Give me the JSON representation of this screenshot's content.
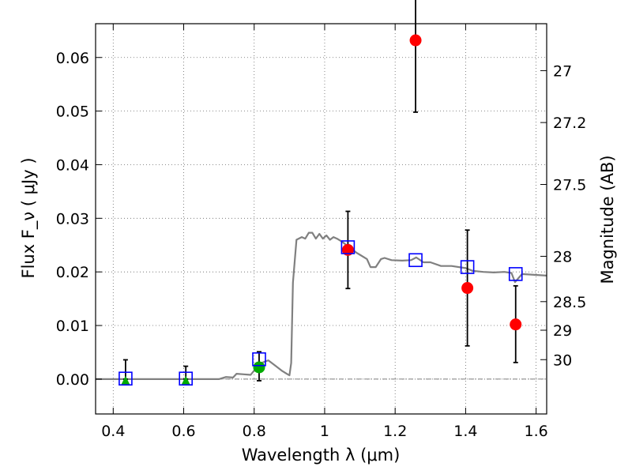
{
  "chart_data": {
    "type": "scatter",
    "title": "",
    "xlabel": "Wavelength  λ (μm)",
    "ylabel": "Flux  F_ν  ( μJy )",
    "ylabel_right": "Magnitude (AB)",
    "xlim": [
      0.35,
      1.63
    ],
    "ylim": [
      -0.0065,
      0.0663
    ],
    "grid": true,
    "x_ticks": [
      {
        "value": 0.4,
        "label": "0.4"
      },
      {
        "value": 0.6,
        "label": "0.6"
      },
      {
        "value": 0.8,
        "label": "0.8"
      },
      {
        "value": 1.0,
        "label": "1"
      },
      {
        "value": 1.2,
        "label": "1.2"
      },
      {
        "value": 1.4,
        "label": "1.4"
      },
      {
        "value": 1.6,
        "label": "1.6"
      }
    ],
    "y_ticks": [
      {
        "value": 0.0,
        "label": "0.00"
      },
      {
        "value": 0.01,
        "label": "0.01"
      },
      {
        "value": 0.02,
        "label": "0.02"
      },
      {
        "value": 0.03,
        "label": "0.03"
      },
      {
        "value": 0.04,
        "label": "0.04"
      },
      {
        "value": 0.05,
        "label": "0.05"
      },
      {
        "value": 0.06,
        "label": "0.06"
      }
    ],
    "right_ticks": [
      {
        "value": 27,
        "label": "27"
      },
      {
        "value": 27.2,
        "label": "27.2"
      },
      {
        "value": 27.5,
        "label": "27.5"
      },
      {
        "value": 28,
        "label": "28"
      },
      {
        "value": 28.5,
        "label": "28.5"
      },
      {
        "value": 29,
        "label": "29"
      },
      {
        "value": 30,
        "label": "30"
      }
    ],
    "series": [
      {
        "kind": "line",
        "color": "#808080",
        "x": [
          0.35,
          0.7,
          0.72,
          0.74,
          0.75,
          0.77,
          0.79,
          0.8,
          0.82,
          0.84,
          0.86,
          0.88,
          0.895,
          0.9,
          0.905,
          0.91,
          0.92,
          0.935,
          0.945,
          0.955,
          0.965,
          0.975,
          0.985,
          0.995,
          1.005,
          1.015,
          1.025,
          1.035,
          1.05,
          1.07,
          1.09,
          1.1,
          1.12,
          1.13,
          1.145,
          1.16,
          1.17,
          1.19,
          1.22,
          1.245,
          1.26,
          1.28,
          1.3,
          1.33,
          1.36,
          1.4,
          1.42,
          1.45,
          1.48,
          1.51,
          1.53,
          1.54,
          1.56,
          1.63
        ],
        "y": [
          0.0,
          0.0,
          0.0004,
          0.0003,
          0.001,
          0.0009,
          0.0008,
          0.0016,
          0.003,
          0.0035,
          0.0025,
          0.0015,
          0.0009,
          0.0007,
          0.003,
          0.018,
          0.026,
          0.0265,
          0.0262,
          0.0273,
          0.0273,
          0.0262,
          0.0271,
          0.0262,
          0.0268,
          0.026,
          0.0265,
          0.0262,
          0.0256,
          0.0246,
          0.0236,
          0.0232,
          0.0224,
          0.0209,
          0.0209,
          0.0224,
          0.0226,
          0.0222,
          0.0221,
          0.0222,
          0.0227,
          0.0218,
          0.0218,
          0.0211,
          0.0211,
          0.0207,
          0.0202,
          0.02,
          0.0199,
          0.02,
          0.0198,
          0.0181,
          0.0196,
          0.0193
        ]
      },
      {
        "kind": "points",
        "marker": "triangle",
        "color": "#00aa00",
        "x": [
          0.435,
          0.606
        ],
        "y": [
          -0.0003,
          -0.0003
        ]
      },
      {
        "kind": "points",
        "marker": "circle",
        "color": "#00aa00",
        "x": [
          0.814
        ],
        "y": [
          0.0022
        ],
        "yerr_low": [
          0.0025
        ],
        "yerr_high": [
          0.0029
        ]
      },
      {
        "kind": "points",
        "marker": "circle",
        "color": "#ff0000",
        "x": [
          1.066,
          1.258,
          1.405,
          1.542
        ],
        "y": [
          0.0241,
          0.0632,
          0.017,
          0.0102
        ],
        "yerr_low": [
          0.0072,
          0.0134,
          0.0108,
          0.0071
        ],
        "yerr_high": [
          0.0072,
          0.0134,
          0.0108,
          0.0072
        ]
      },
      {
        "kind": "points",
        "marker": "open-square",
        "color": "#0000ff",
        "x": [
          0.435,
          0.606,
          0.814,
          1.066,
          1.258,
          1.405,
          1.542
        ],
        "y": [
          0.0001,
          0.0001,
          0.0037,
          0.0246,
          0.0222,
          0.0209,
          0.0196
        ]
      },
      {
        "kind": "errorbars-only",
        "color": "#000000",
        "x": [
          0.435,
          0.606
        ],
        "y": [
          0.0001,
          0.0001
        ],
        "yerr_low": [
          0.0001,
          0.0001
        ],
        "yerr_high": [
          0.0035,
          0.0023
        ]
      }
    ]
  }
}
